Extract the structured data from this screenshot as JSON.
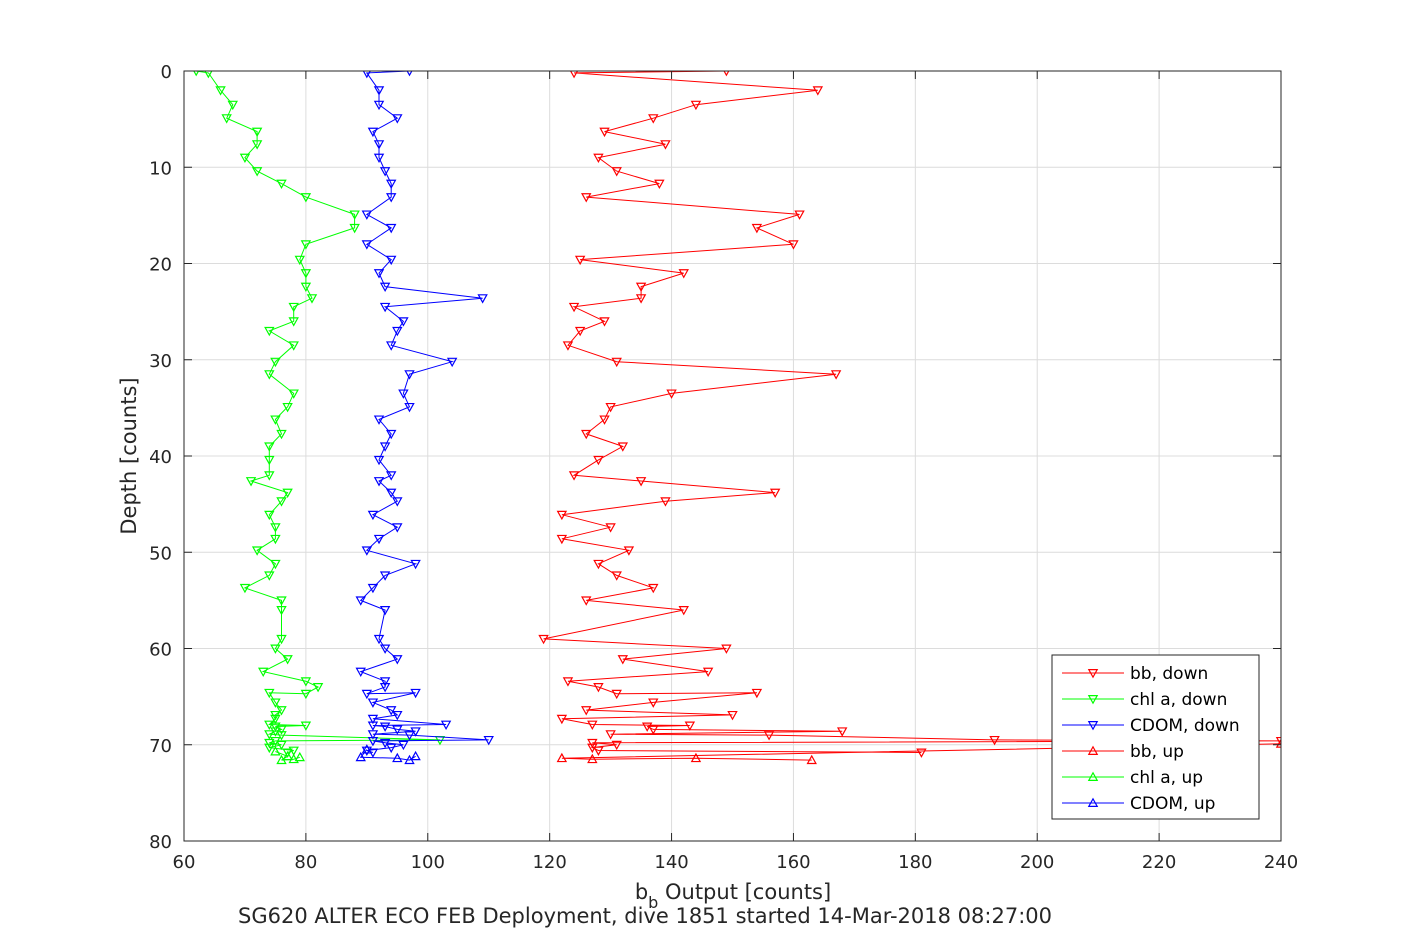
{
  "chart_data": {
    "type": "line",
    "title": "SG620 ALTER ECO FEB Deployment, dive 1851 started 14-Mar-2018 08:27:00",
    "xlabel": "b",
    "xlabel_sub": "b",
    "xlabel_rest": " Output [counts]",
    "ylabel": "Depth [counts]",
    "xlim": [
      60,
      240
    ],
    "ylim": [
      0,
      80
    ],
    "y_reversed": true,
    "grid": true,
    "legend_position": "bottom-right",
    "xticks": [
      60,
      80,
      100,
      120,
      140,
      160,
      180,
      200,
      220,
      240
    ],
    "yticks": [
      0,
      10,
      20,
      30,
      40,
      50,
      60,
      70,
      80
    ],
    "series": [
      {
        "name": "bb, down",
        "color": "#ff0000",
        "marker": "triangle-down",
        "points": [
          [
            149,
            0
          ],
          [
            124,
            0.2
          ],
          [
            164,
            2
          ],
          [
            144,
            3.5
          ],
          [
            137,
            4.9
          ],
          [
            129,
            6.3
          ],
          [
            139,
            7.6
          ],
          [
            128,
            9
          ],
          [
            131,
            10.4
          ],
          [
            138,
            11.7
          ],
          [
            126,
            13.1
          ],
          [
            161,
            14.9
          ],
          [
            154,
            16.3
          ],
          [
            160,
            18
          ],
          [
            125,
            19.6
          ],
          [
            142,
            21
          ],
          [
            135,
            22.4
          ],
          [
            135,
            23.6
          ],
          [
            124,
            24.5
          ],
          [
            129,
            26
          ],
          [
            125,
            27
          ],
          [
            123,
            28.5
          ],
          [
            131,
            30.2
          ],
          [
            167,
            31.5
          ],
          [
            140,
            33.5
          ],
          [
            130,
            34.9
          ],
          [
            129,
            36.2
          ],
          [
            126,
            37.7
          ],
          [
            132,
            39
          ],
          [
            128,
            40.4
          ],
          [
            124,
            42
          ],
          [
            135,
            42.6
          ],
          [
            157,
            43.8
          ],
          [
            139,
            44.7
          ],
          [
            122,
            46.1
          ],
          [
            130,
            47.4
          ],
          [
            122,
            48.6
          ],
          [
            133,
            49.8
          ],
          [
            128,
            51.2
          ],
          [
            131,
            52.4
          ],
          [
            137,
            53.7
          ],
          [
            126,
            55
          ],
          [
            142,
            56
          ],
          [
            119,
            59
          ],
          [
            149,
            60
          ],
          [
            132,
            61.1
          ],
          [
            146,
            62.4
          ],
          [
            123,
            63.4
          ],
          [
            128,
            64
          ],
          [
            131,
            64.7
          ],
          [
            154,
            64.6
          ],
          [
            137,
            65.6
          ],
          [
            126,
            66.4
          ],
          [
            150,
            66.9
          ],
          [
            122,
            67.3
          ],
          [
            127,
            67.9
          ],
          [
            143,
            68
          ],
          [
            136,
            68.1
          ],
          [
            137,
            68.4
          ],
          [
            168,
            68.6
          ],
          [
            130,
            68.9
          ],
          [
            156,
            69
          ],
          [
            193,
            69.5
          ],
          [
            240,
            69.6
          ],
          [
            127,
            69.8
          ],
          [
            131,
            70
          ],
          [
            127,
            70.3
          ],
          [
            128,
            70.6
          ],
          [
            181,
            70.8
          ]
        ]
      },
      {
        "name": "chl a, down",
        "color": "#00ff00",
        "marker": "triangle-down",
        "points": [
          [
            62,
            0
          ],
          [
            64,
            0.2
          ],
          [
            66,
            2
          ],
          [
            68,
            3.5
          ],
          [
            67,
            4.9
          ],
          [
            72,
            6.3
          ],
          [
            72,
            7.6
          ],
          [
            70,
            9
          ],
          [
            72,
            10.4
          ],
          [
            76,
            11.7
          ],
          [
            80,
            13.1
          ],
          [
            88,
            14.9
          ],
          [
            88,
            16.3
          ],
          [
            80,
            18
          ],
          [
            79,
            19.6
          ],
          [
            80,
            21
          ],
          [
            80,
            22.4
          ],
          [
            81,
            23.6
          ],
          [
            78,
            24.5
          ],
          [
            78,
            26
          ],
          [
            74,
            27
          ],
          [
            78,
            28.5
          ],
          [
            75,
            30.2
          ],
          [
            74,
            31.5
          ],
          [
            78,
            33.5
          ],
          [
            77,
            34.9
          ],
          [
            75,
            36.2
          ],
          [
            76,
            37.7
          ],
          [
            74,
            39
          ],
          [
            74,
            40.4
          ],
          [
            74,
            42
          ],
          [
            71,
            42.6
          ],
          [
            77,
            43.8
          ],
          [
            76,
            44.7
          ],
          [
            74,
            46.1
          ],
          [
            75,
            47.4
          ],
          [
            75,
            48.6
          ],
          [
            72,
            49.8
          ],
          [
            75,
            51.2
          ],
          [
            74,
            52.4
          ],
          [
            70,
            53.7
          ],
          [
            76,
            55
          ],
          [
            76,
            56
          ],
          [
            76,
            59
          ],
          [
            75,
            60
          ],
          [
            77,
            61.1
          ],
          [
            73,
            62.4
          ],
          [
            80,
            63.4
          ],
          [
            82,
            64
          ],
          [
            80,
            64.7
          ],
          [
            74,
            64.6
          ],
          [
            75,
            65.6
          ],
          [
            76,
            66.4
          ],
          [
            75,
            66.9
          ],
          [
            75,
            67.3
          ],
          [
            74,
            67.9
          ],
          [
            80,
            68
          ],
          [
            75,
            68.1
          ],
          [
            76,
            68.4
          ],
          [
            75,
            68.6
          ],
          [
            74,
            68.9
          ],
          [
            76,
            69
          ],
          [
            102,
            69.5
          ],
          [
            75,
            69.6
          ],
          [
            74,
            69.8
          ],
          [
            76,
            70
          ],
          [
            74,
            70.3
          ],
          [
            78,
            70.6
          ],
          [
            77,
            70.8
          ]
        ]
      },
      {
        "name": "CDOM, down",
        "color": "#0000ff",
        "marker": "triangle-down",
        "points": [
          [
            97,
            0
          ],
          [
            90,
            0.2
          ],
          [
            92,
            2
          ],
          [
            92,
            3.5
          ],
          [
            95,
            4.9
          ],
          [
            91,
            6.3
          ],
          [
            92,
            7.6
          ],
          [
            92,
            9
          ],
          [
            93,
            10.4
          ],
          [
            94,
            11.7
          ],
          [
            94,
            13.1
          ],
          [
            90,
            14.9
          ],
          [
            94,
            16.3
          ],
          [
            90,
            18
          ],
          [
            94,
            19.6
          ],
          [
            92,
            21
          ],
          [
            93,
            22.4
          ],
          [
            109,
            23.6
          ],
          [
            93,
            24.5
          ],
          [
            96,
            26
          ],
          [
            95,
            27
          ],
          [
            94,
            28.5
          ],
          [
            104,
            30.2
          ],
          [
            97,
            31.5
          ],
          [
            96,
            33.5
          ],
          [
            97,
            34.9
          ],
          [
            92,
            36.2
          ],
          [
            94,
            37.7
          ],
          [
            93,
            39
          ],
          [
            92,
            40.4
          ],
          [
            94,
            42
          ],
          [
            92,
            42.6
          ],
          [
            94,
            43.8
          ],
          [
            95,
            44.7
          ],
          [
            91,
            46.1
          ],
          [
            95,
            47.4
          ],
          [
            92,
            48.6
          ],
          [
            90,
            49.8
          ],
          [
            98,
            51.2
          ],
          [
            93,
            52.4
          ],
          [
            91,
            53.7
          ],
          [
            89,
            55
          ],
          [
            93,
            56
          ],
          [
            92,
            59
          ],
          [
            93,
            60
          ],
          [
            95,
            61.1
          ],
          [
            89,
            62.4
          ],
          [
            93,
            63.4
          ],
          [
            93,
            64
          ],
          [
            90,
            64.7
          ],
          [
            98,
            64.6
          ],
          [
            91,
            65.6
          ],
          [
            94,
            66.4
          ],
          [
            95,
            66.9
          ],
          [
            91,
            67.3
          ],
          [
            103,
            67.9
          ],
          [
            91,
            68
          ],
          [
            93,
            68.1
          ],
          [
            95,
            68.4
          ],
          [
            98,
            68.6
          ],
          [
            91,
            68.9
          ],
          [
            97,
            69
          ],
          [
            110,
            69.5
          ],
          [
            91,
            69.6
          ],
          [
            93,
            69.8
          ],
          [
            96,
            70
          ],
          [
            94,
            70.3
          ],
          [
            90,
            70.6
          ],
          [
            91,
            70.8
          ]
        ]
      },
      {
        "name": "bb, up",
        "color": "#ff0000",
        "marker": "triangle-up",
        "points": [
          [
            240,
            69.9
          ],
          [
            122,
            71.4
          ],
          [
            127,
            71.5
          ],
          [
            144,
            71.4
          ],
          [
            163,
            71.6
          ]
        ]
      },
      {
        "name": "chl a, up",
        "color": "#00ff00",
        "marker": "triangle-up",
        "points": [
          [
            75,
            70.7
          ],
          [
            77,
            71.2
          ],
          [
            76,
            71.6
          ],
          [
            78,
            71.5
          ],
          [
            79,
            71.3
          ]
        ]
      },
      {
        "name": "CDOM, up",
        "color": "#0000ff",
        "marker": "triangle-up",
        "points": [
          [
            90,
            70.5
          ],
          [
            89,
            71.3
          ],
          [
            95,
            71.4
          ],
          [
            97,
            71.6
          ],
          [
            98,
            71.2
          ]
        ]
      }
    ]
  }
}
